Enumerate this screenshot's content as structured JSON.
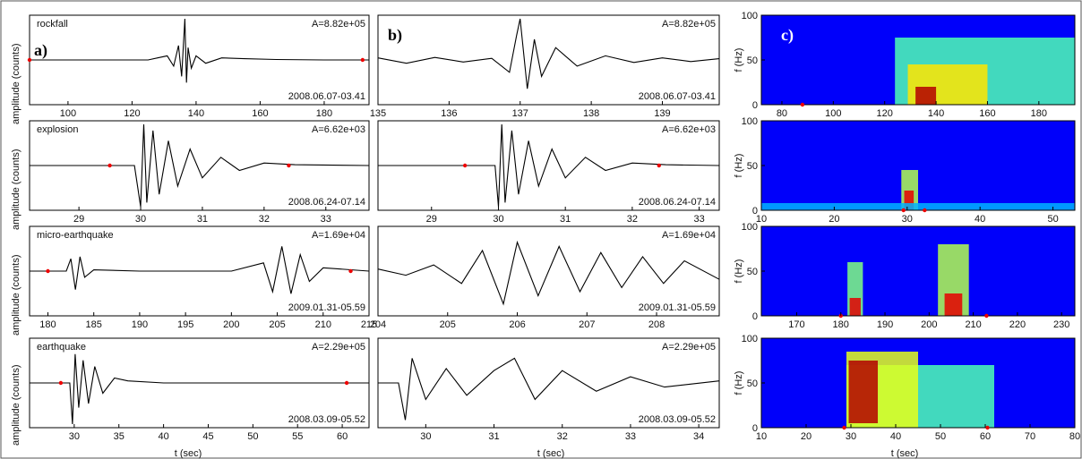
{
  "panel_labels": {
    "a": "a)",
    "b": "b)",
    "c": "c)"
  },
  "ylabel_wave": "amplitude (counts)",
  "ylabel_spec": "f (Hz)",
  "xlabel": "t (sec)",
  "chart_data": [
    {
      "type": "line",
      "panel": "a",
      "row": 0,
      "event": "rockfall",
      "amplitude_label": "A=8.82e+05",
      "date_label": "2008.06.07-03.41",
      "xlim": [
        88,
        194
      ],
      "xticks": [
        "100",
        "120",
        "140",
        "160",
        "180"
      ],
      "xtick_values": [
        100,
        120,
        140,
        160,
        180
      ],
      "markers_x": [
        88,
        192
      ],
      "x": [
        88,
        125,
        128,
        131,
        133,
        134.5,
        135.5,
        136.5,
        137,
        137.5,
        138.5,
        140,
        143,
        148,
        155,
        165,
        180,
        194
      ],
      "y": [
        0,
        0,
        0.05,
        0.1,
        -0.15,
        0.35,
        -0.4,
        1.0,
        -0.55,
        0.3,
        -0.2,
        0.1,
        -0.08,
        0.05,
        0.03,
        0.01,
        0,
        0
      ]
    },
    {
      "type": "line",
      "panel": "b",
      "row": 0,
      "event": "",
      "amplitude_label": "A=8.82e+05",
      "date_label": "2008.06.07-03.41",
      "xlim": [
        135,
        139.8
      ],
      "xticks": [
        "135",
        "136",
        "137",
        "138",
        "139"
      ],
      "xtick_values": [
        135,
        136,
        137,
        138,
        139
      ],
      "markers_x": [],
      "x": [
        135,
        135.4,
        135.8,
        136.2,
        136.6,
        136.85,
        136.95,
        137.0,
        137.1,
        137.2,
        137.3,
        137.5,
        137.8,
        138.2,
        138.6,
        139.0,
        139.4,
        139.8
      ],
      "y": [
        0.05,
        -0.08,
        0.06,
        -0.05,
        0.04,
        -0.3,
        0.6,
        1.0,
        -0.7,
        0.5,
        -0.4,
        0.3,
        -0.15,
        0.1,
        -0.06,
        0.05,
        -0.04,
        0.03
      ]
    },
    {
      "type": "heatmap",
      "panel": "c",
      "row": 0,
      "xlim": [
        72,
        194
      ],
      "ylim": [
        0,
        100
      ],
      "yticks": [
        "0",
        "50",
        "100"
      ],
      "ytick_values": [
        0,
        50,
        100
      ],
      "xticks": [
        "80",
        "100",
        "120",
        "140",
        "160",
        "180"
      ],
      "xtick_values": [
        80,
        100,
        120,
        140,
        160,
        180
      ],
      "markers_x": [
        88
      ],
      "blobs": [
        {
          "x0": 124,
          "x1": 194,
          "y0": 0,
          "y1": 75,
          "level": 0.45
        },
        {
          "x0": 129,
          "x1": 160,
          "y0": 0,
          "y1": 45,
          "level": 0.65
        },
        {
          "x0": 132,
          "x1": 140,
          "y0": 0,
          "y1": 20,
          "level": 0.95
        }
      ]
    },
    {
      "type": "line",
      "panel": "a",
      "row": 1,
      "event": "explosion",
      "amplitude_label": "A=6.62e+03",
      "date_label": "2008.06.24-07.14",
      "xlim": [
        28.2,
        33.7
      ],
      "xticks": [
        "29",
        "30",
        "31",
        "32",
        "33"
      ],
      "xtick_values": [
        29,
        30,
        31,
        32,
        33
      ],
      "markers_x": [
        29.5,
        32.4
      ],
      "x": [
        28.2,
        29.9,
        30.0,
        30.05,
        30.1,
        30.2,
        30.3,
        30.45,
        30.6,
        30.8,
        31.0,
        31.3,
        31.6,
        32.0,
        32.5,
        33.7
      ],
      "y": [
        0,
        0,
        -1.0,
        1.0,
        -0.9,
        0.85,
        -0.7,
        0.6,
        -0.5,
        0.4,
        -0.3,
        0.2,
        -0.12,
        0.06,
        0.02,
        0
      ]
    },
    {
      "type": "line",
      "panel": "b",
      "row": 1,
      "event": "",
      "amplitude_label": "A=6.62e+03",
      "date_label": "2008.06.24-07.14",
      "xlim": [
        28.2,
        33.3
      ],
      "xticks": [
        "29",
        "30",
        "31",
        "32",
        "33"
      ],
      "xtick_values": [
        29,
        30,
        31,
        32,
        33
      ],
      "markers_x": [
        29.5,
        32.4
      ],
      "x": [
        28.2,
        29.95,
        30.0,
        30.05,
        30.1,
        30.2,
        30.3,
        30.45,
        30.6,
        30.8,
        31.0,
        31.3,
        31.6,
        32.0,
        32.5,
        33.3
      ],
      "y": [
        0,
        0,
        -1.0,
        1.0,
        -0.9,
        0.85,
        -0.7,
        0.6,
        -0.5,
        0.4,
        -0.3,
        0.2,
        -0.12,
        0.06,
        0.02,
        0
      ]
    },
    {
      "type": "heatmap",
      "panel": "c",
      "row": 1,
      "xlim": [
        10,
        53
      ],
      "ylim": [
        0,
        100
      ],
      "yticks": [
        "0",
        "50",
        "100"
      ],
      "ytick_values": [
        0,
        50,
        100
      ],
      "xticks": [
        "10",
        "20",
        "30",
        "40",
        "50"
      ],
      "xtick_values": [
        10,
        20,
        30,
        40,
        50
      ],
      "markers_x": [
        29.5,
        32.4
      ],
      "blobs": [
        {
          "x0": 29.2,
          "x1": 31.5,
          "y0": 0,
          "y1": 45,
          "level": 0.55
        },
        {
          "x0": 29.6,
          "x1": 30.9,
          "y0": 0,
          "y1": 22,
          "level": 0.9
        },
        {
          "x0": 10,
          "x1": 53,
          "y0": 0,
          "y1": 8,
          "level": 0.3
        }
      ]
    },
    {
      "type": "line",
      "panel": "a",
      "row": 2,
      "event": "micro-earthquake",
      "amplitude_label": "A=1.69e+04",
      "date_label": "2009.01.31-05.59",
      "xlim": [
        178,
        215
      ],
      "xticks": [
        "180",
        "185",
        "190",
        "195",
        "200",
        "205",
        "210",
        "215"
      ],
      "xtick_values": [
        180,
        185,
        190,
        195,
        200,
        205,
        210,
        215
      ],
      "markers_x": [
        180,
        213
      ],
      "x": [
        178,
        182,
        182.5,
        183,
        183.5,
        184,
        185,
        190,
        200,
        203.5,
        204.5,
        205.5,
        206.5,
        207.5,
        208.5,
        210,
        215
      ],
      "y": [
        0,
        0,
        0.3,
        -0.45,
        0.35,
        -0.15,
        0.03,
        0,
        0,
        0.2,
        -0.5,
        0.6,
        -0.55,
        0.4,
        -0.25,
        0.08,
        0
      ]
    },
    {
      "type": "line",
      "panel": "b",
      "row": 2,
      "event": "",
      "amplitude_label": "A=1.69e+04",
      "date_label": "2009.01.31-05.59",
      "xlim": [
        204,
        208.9
      ],
      "xticks": [
        "204",
        "205",
        "206",
        "207",
        "208"
      ],
      "xtick_values": [
        204,
        205,
        206,
        207,
        208
      ],
      "markers_x": [],
      "x": [
        204,
        204.4,
        204.8,
        205.2,
        205.5,
        205.8,
        206.0,
        206.3,
        206.6,
        206.9,
        207.2,
        207.5,
        207.8,
        208.1,
        208.4,
        208.9
      ],
      "y": [
        0.05,
        -0.1,
        0.15,
        -0.3,
        0.5,
        -0.8,
        0.7,
        -0.6,
        0.6,
        -0.5,
        0.45,
        -0.4,
        0.35,
        -0.3,
        0.25,
        -0.2
      ]
    },
    {
      "type": "heatmap",
      "panel": "c",
      "row": 2,
      "xlim": [
        162,
        233
      ],
      "ylim": [
        0,
        100
      ],
      "yticks": [
        "0",
        "50",
        "100"
      ],
      "ytick_values": [
        0,
        50,
        100
      ],
      "xticks": [
        "170",
        "180",
        "190",
        "200",
        "210",
        "220",
        "230"
      ],
      "xtick_values": [
        170,
        180,
        190,
        200,
        210,
        220,
        230
      ],
      "markers_x": [
        180,
        213
      ],
      "blobs": [
        {
          "x0": 181.5,
          "x1": 185,
          "y0": 0,
          "y1": 60,
          "level": 0.5
        },
        {
          "x0": 182,
          "x1": 184.5,
          "y0": 0,
          "y1": 20,
          "level": 0.9
        },
        {
          "x0": 202,
          "x1": 209,
          "y0": 0,
          "y1": 80,
          "level": 0.55
        },
        {
          "x0": 203.5,
          "x1": 207.5,
          "y0": 0,
          "y1": 25,
          "level": 0.9
        }
      ]
    },
    {
      "type": "line",
      "panel": "a",
      "row": 3,
      "event": "earthquake",
      "amplitude_label": "A=2.29e+05",
      "date_label": "2008.03.09-05.52",
      "xlim": [
        25,
        63
      ],
      "xticks": [
        "30",
        "35",
        "40",
        "45",
        "50",
        "55",
        "60"
      ],
      "xtick_values": [
        30,
        35,
        40,
        45,
        50,
        55,
        60
      ],
      "markers_x": [
        28.5,
        60.5
      ],
      "x": [
        25,
        29.5,
        29.8,
        30.1,
        30.5,
        31.0,
        31.6,
        32.3,
        33.2,
        34.5,
        36,
        40,
        63
      ],
      "y": [
        0,
        0,
        -1.0,
        0.7,
        -0.6,
        0.55,
        -0.5,
        0.4,
        -0.25,
        0.12,
        0.05,
        0,
        0
      ]
    },
    {
      "type": "line",
      "panel": "b",
      "row": 3,
      "event": "",
      "amplitude_label": "A=2.29e+05",
      "date_label": "2008.03.09-05.52",
      "xlim": [
        29.3,
        34.3
      ],
      "xticks": [
        "30",
        "31",
        "32",
        "33",
        "34"
      ],
      "xtick_values": [
        30,
        31,
        32,
        33,
        34
      ],
      "markers_x": [],
      "x": [
        29.3,
        29.6,
        29.7,
        29.8,
        30.0,
        30.3,
        30.6,
        31.0,
        31.3,
        31.6,
        32.0,
        32.5,
        33.0,
        33.5,
        34.3
      ],
      "y": [
        0,
        0,
        -0.9,
        0.6,
        -0.4,
        0.35,
        -0.3,
        0.3,
        0.6,
        -0.4,
        0.3,
        -0.2,
        0.15,
        -0.1,
        0.05
      ]
    },
    {
      "type": "heatmap",
      "panel": "c",
      "row": 3,
      "xlim": [
        10,
        80
      ],
      "ylim": [
        0,
        100
      ],
      "yticks": [
        "0",
        "50",
        "100"
      ],
      "ytick_values": [
        0,
        50,
        100
      ],
      "xticks": [
        "10",
        "20",
        "30",
        "40",
        "50",
        "60",
        "70",
        "80"
      ],
      "xtick_values": [
        10,
        20,
        30,
        40,
        50,
        60,
        70,
        80
      ],
      "markers_x": [
        28.5,
        60.5
      ],
      "blobs": [
        {
          "x0": 29,
          "x1": 62,
          "y0": 0,
          "y1": 70,
          "level": 0.45
        },
        {
          "x0": 29,
          "x1": 45,
          "y0": 0,
          "y1": 85,
          "level": 0.6
        },
        {
          "x0": 29.5,
          "x1": 36,
          "y0": 5,
          "y1": 75,
          "level": 0.95
        }
      ]
    }
  ]
}
